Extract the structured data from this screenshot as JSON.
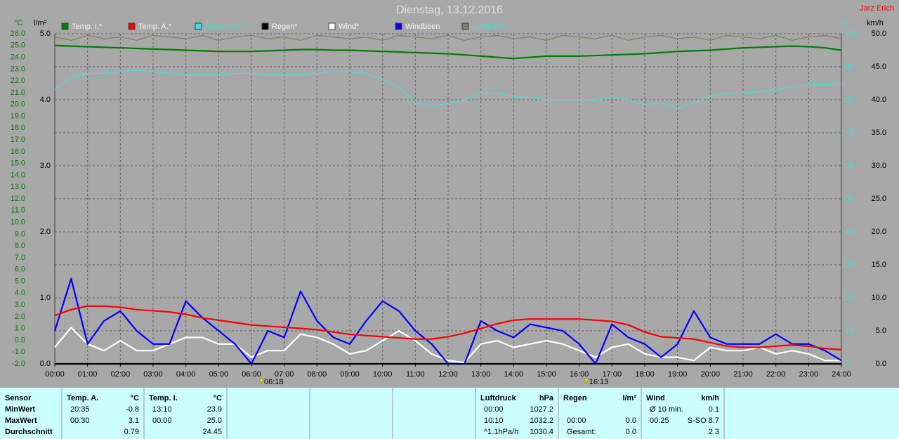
{
  "chart_data": {
    "type": "line",
    "title": "Dienstag, 13.12.2016",
    "author": "Jarz Erich",
    "ylabel": "°C",
    "y3label": "l/m²",
    "y4label": "%",
    "y2label": "km/h",
    "x": [
      0,
      0.5,
      1,
      1.5,
      2,
      2.5,
      3,
      3.5,
      4,
      4.5,
      5,
      5.5,
      6,
      6.5,
      7,
      7.5,
      8,
      8.5,
      9,
      9.5,
      10,
      10.5,
      11,
      11.5,
      12,
      12.5,
      13,
      13.5,
      14,
      14.5,
      15,
      15.5,
      16,
      16.5,
      17,
      17.5,
      18,
      18.5,
      19,
      19.5,
      20,
      20.5,
      21,
      21.5,
      22,
      22.5,
      23,
      23.5,
      24
    ],
    "xlim": [
      0,
      24
    ],
    "xticks": [
      {
        "value": 0,
        "label": "00:00"
      },
      {
        "value": 1,
        "label": "01:00"
      },
      {
        "value": 2,
        "label": "02:00"
      },
      {
        "value": 3,
        "label": "03:00"
      },
      {
        "value": 4,
        "label": "04:00"
      },
      {
        "value": 5,
        "label": "05:00"
      },
      {
        "value": 6,
        "label": "06:00"
      },
      {
        "value": 7,
        "label": "07:00"
      },
      {
        "value": 8,
        "label": "08:00"
      },
      {
        "value": 9,
        "label": "09:00"
      },
      {
        "value": 10,
        "label": "10:00"
      },
      {
        "value": 11,
        "label": "11:00"
      },
      {
        "value": 12,
        "label": "12:00"
      },
      {
        "value": 13,
        "label": "13:00"
      },
      {
        "value": 14,
        "label": "14:00"
      },
      {
        "value": 15,
        "label": "15:00"
      },
      {
        "value": 16,
        "label": "16:00"
      },
      {
        "value": 17,
        "label": "17:00"
      },
      {
        "value": 18,
        "label": "18:00"
      },
      {
        "value": 19,
        "label": "19:00"
      },
      {
        "value": 20,
        "label": "20:00"
      },
      {
        "value": 21,
        "label": "21:00"
      },
      {
        "value": 22,
        "label": "22:00"
      },
      {
        "value": 23,
        "label": "23:00"
      },
      {
        "value": 24,
        "label": "24:00"
      }
    ],
    "ylim": [
      -2,
      26
    ],
    "yticks": [
      {
        "value": 26,
        "label": "26.0"
      },
      {
        "value": 25,
        "label": "25.0"
      },
      {
        "value": 24,
        "label": "24.0"
      },
      {
        "value": 23,
        "label": "23.0"
      },
      {
        "value": 22,
        "label": "22.0"
      },
      {
        "value": 21,
        "label": "21.0"
      },
      {
        "value": 20,
        "label": "20.0"
      },
      {
        "value": 19,
        "label": "19.0"
      },
      {
        "value": 18,
        "label": "18.0"
      },
      {
        "value": 17,
        "label": "17.0"
      },
      {
        "value": 16,
        "label": "16.0"
      },
      {
        "value": 15,
        "label": "15.0"
      },
      {
        "value": 14,
        "label": "14.0"
      },
      {
        "value": 13,
        "label": "13.0"
      },
      {
        "value": 12,
        "label": "12.0"
      },
      {
        "value": 11,
        "label": "11.0"
      },
      {
        "value": 10,
        "label": "10.0"
      },
      {
        "value": 9,
        "label": "9.0"
      },
      {
        "value": 8,
        "label": "8.0"
      },
      {
        "value": 7,
        "label": "7.0"
      },
      {
        "value": 6,
        "label": "6.0"
      },
      {
        "value": 5,
        "label": "5.0"
      },
      {
        "value": 4,
        "label": "4.0"
      },
      {
        "value": 3,
        "label": "3.0"
      },
      {
        "value": 2,
        "label": "2.0"
      },
      {
        "value": 1,
        "label": "1.0"
      },
      {
        "value": 0,
        "label": "0.0"
      },
      {
        "value": -1,
        "label": "-1.0"
      },
      {
        "value": -2,
        "label": "-2.0"
      }
    ],
    "y3lim": [
      0,
      5
    ],
    "y3ticks": [
      {
        "value": 5,
        "label": "5.0"
      },
      {
        "value": 4,
        "label": "4.0"
      },
      {
        "value": 3,
        "label": "3.0"
      },
      {
        "value": 2,
        "label": "2.0"
      },
      {
        "value": 1,
        "label": "1.0"
      },
      {
        "value": 0,
        "label": "0.0"
      }
    ],
    "y4lim": [
      0,
      100
    ],
    "y4ticks": [
      100,
      90,
      80,
      70,
      60,
      50,
      40,
      30,
      20,
      10,
      0
    ],
    "y2lim": [
      0,
      50
    ],
    "y2ticks": [
      {
        "value": 50,
        "label": "50.0"
      },
      {
        "value": 45,
        "label": "45.0"
      },
      {
        "value": 40,
        "label": "40.0"
      },
      {
        "value": 35,
        "label": "35.0"
      },
      {
        "value": 30,
        "label": "30.0"
      },
      {
        "value": 25,
        "label": "25.0"
      },
      {
        "value": 20,
        "label": "20.0"
      },
      {
        "value": 15,
        "label": "15.0"
      },
      {
        "value": 10,
        "label": "10.0"
      },
      {
        "value": 5,
        "label": "5.0"
      },
      {
        "value": 0,
        "label": "0.0"
      }
    ],
    "grid": true,
    "series": [
      {
        "name": "Temp. I.*",
        "color": "#008000",
        "axis": "y",
        "values": [
          25.0,
          24.95,
          24.9,
          24.85,
          24.8,
          24.75,
          24.7,
          24.65,
          24.6,
          24.55,
          24.5,
          24.5,
          24.5,
          24.55,
          24.6,
          24.65,
          24.65,
          24.6,
          24.6,
          24.55,
          24.5,
          24.45,
          24.4,
          24.35,
          24.3,
          24.2,
          24.1,
          24.0,
          23.9,
          24.0,
          24.1,
          24.1,
          24.1,
          24.15,
          24.2,
          24.25,
          24.3,
          24.4,
          24.5,
          24.55,
          24.6,
          24.7,
          24.8,
          24.85,
          24.9,
          24.95,
          24.9,
          24.8,
          24.6
        ]
      },
      {
        "name": "Temp. A.*",
        "color": "#ff0000",
        "axis": "y",
        "values": [
          2.1,
          2.6,
          2.9,
          2.9,
          2.8,
          2.6,
          2.5,
          2.4,
          2.2,
          1.9,
          1.7,
          1.5,
          1.3,
          1.2,
          1.1,
          1.0,
          0.9,
          0.7,
          0.5,
          0.4,
          0.3,
          0.2,
          0.1,
          0.1,
          0.3,
          0.6,
          1.0,
          1.4,
          1.7,
          1.8,
          1.8,
          1.8,
          1.8,
          1.7,
          1.6,
          1.3,
          0.7,
          0.3,
          0.2,
          0.1,
          -0.2,
          -0.5,
          -0.6,
          -0.6,
          -0.5,
          -0.4,
          -0.5,
          -0.7,
          -0.8
        ]
      },
      {
        "name": "Feuchte A.*",
        "color": "#40e0e0",
        "axis": "y4",
        "label_color": "#40e0e0",
        "values": [
          83,
          87,
          88,
          88,
          88.5,
          89,
          88.5,
          88,
          87.5,
          87.5,
          87.5,
          88,
          88,
          87.5,
          87.5,
          87.5,
          88,
          88.5,
          88.5,
          88,
          86,
          84,
          79,
          78,
          79,
          80,
          82,
          82,
          81,
          80.5,
          80,
          80,
          80,
          80,
          80.5,
          80,
          78.5,
          79,
          77.5,
          79,
          81,
          82,
          82,
          82.5,
          83,
          84,
          84.5,
          84.5,
          85
        ]
      },
      {
        "name": "Regen*",
        "color": "#000000",
        "axis": "y3",
        "values": [
          0,
          0,
          0,
          0,
          0,
          0,
          0,
          0,
          0,
          0,
          0,
          0,
          0,
          0,
          0,
          0,
          0,
          0,
          0,
          0,
          0,
          0,
          0,
          0,
          0,
          0,
          0,
          0,
          0,
          0,
          0,
          0,
          0,
          0,
          0,
          0,
          0,
          0,
          0,
          0,
          0,
          0,
          0,
          0,
          0,
          0,
          0,
          0,
          0
        ]
      },
      {
        "name": "Wind*",
        "color": "#ffffff",
        "axis": "y2",
        "values": [
          2.5,
          5.5,
          3,
          2,
          3.5,
          2,
          2,
          3,
          4,
          4,
          3,
          3,
          1,
          2,
          2,
          4.5,
          4,
          3,
          1.5,
          2,
          3.5,
          5,
          3.5,
          1.5,
          0.5,
          0.2,
          3,
          3.5,
          2.5,
          3,
          3.5,
          3,
          2,
          1,
          2.5,
          3,
          1.5,
          1,
          1,
          0.5,
          2.5,
          2,
          2,
          2.5,
          1.5,
          2,
          1.5,
          0.5,
          0.5
        ]
      },
      {
        "name": "Windböen",
        "color": "#0000ff",
        "axis": "y2",
        "values": [
          5,
          12.9,
          3,
          6.5,
          8,
          5,
          3,
          3,
          9.5,
          7,
          5,
          3,
          0,
          5,
          4,
          11,
          6.5,
          4,
          3,
          6.5,
          9.5,
          8,
          5,
          3,
          0,
          0,
          6.5,
          5,
          4,
          6,
          5.5,
          5,
          3,
          0,
          6,
          4,
          3,
          1,
          3,
          8,
          4,
          3,
          3,
          3,
          4.5,
          3,
          3,
          2,
          0.5
        ]
      },
      {
        "name": "Luftdruck",
        "color": "#808060",
        "axis": "y4",
        "label_color": "#40e0e0",
        "values": [
          99,
          98,
          99.5,
          98.5,
          99,
          98,
          99.5,
          99,
          98.5,
          99.5,
          98,
          99,
          99.5,
          98.5,
          99,
          98,
          99.5,
          99,
          98.5,
          99,
          98,
          99.5,
          99,
          98.5,
          99.5,
          98,
          99,
          99.5,
          98.5,
          99,
          98,
          99.5,
          99,
          98.5,
          99.5,
          98,
          99,
          99.5,
          98.5,
          99,
          98,
          99.5,
          99,
          98.5,
          99.5,
          98,
          99,
          99.5,
          98.5
        ]
      }
    ],
    "annotations": [
      {
        "x": 6.3,
        "label": "06:18"
      },
      {
        "x": 16.2167,
        "label": "16:13"
      }
    ]
  },
  "table": {
    "row_labels": [
      "Sensor",
      "MinWert",
      "MaxWert",
      "Durchschnitt"
    ],
    "columns": [
      {
        "label": "Temp. A.",
        "unit": "°C",
        "rows": [
          {
            "time": "20:35",
            "value": "-0.8"
          },
          {
            "time": "00:30",
            "value": "3.1"
          },
          {
            "value": "0.79"
          }
        ]
      },
      {
        "label": "Temp. I.",
        "unit": "°C",
        "rows": [
          {
            "time": "13:10",
            "value": "23.9"
          },
          {
            "time": "00:00",
            "value": "25.0"
          },
          {
            "value": "24.45"
          }
        ]
      },
      {},
      {},
      {},
      {
        "label": "Luftdruck",
        "unit": "hPa",
        "rows": [
          {
            "time": "00:00",
            "value": "1027.2"
          },
          {
            "time": "10:10",
            "value": "1032.2"
          },
          {
            "time": "^1.1hPa/h",
            "value": "1030.4"
          }
        ]
      },
      {
        "label": "Regen",
        "unit": "l/m²",
        "rows": [
          {},
          {
            "time": "00:00",
            "value": "0.0"
          },
          {
            "time": "Gesamt:",
            "value": "0.0"
          }
        ]
      },
      {
        "label": "Wind",
        "unit": "km/h",
        "rows": [
          {
            "time": "Ø 10 min.",
            "value": "0.1"
          },
          {
            "time": "00:25",
            "value": "S-SO 8.7"
          },
          {
            "value": "2.3"
          }
        ]
      }
    ]
  }
}
